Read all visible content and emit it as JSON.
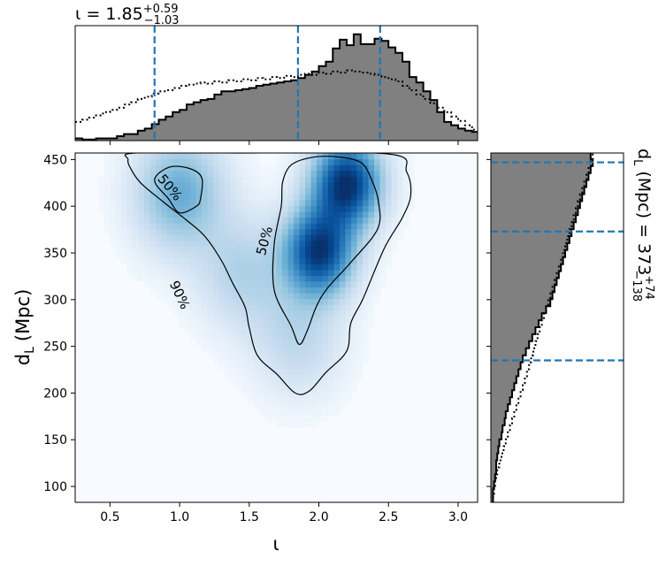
{
  "chart_data": {
    "type": "corner",
    "joint": {
      "type": "heatmap",
      "xlabel_base": "ι",
      "ylabel_base": "d",
      "ylabel_sub": "L",
      "ylabel_unit": "(Mpc)",
      "xlim": [
        0.25,
        3.14
      ],
      "ylim": [
        83,
        457
      ],
      "xticks": [
        0.5,
        1.0,
        1.5,
        2.0,
        2.5,
        3.0
      ],
      "xtick_labels": [
        "0.5",
        "1.0",
        "1.5",
        "2.0",
        "2.5",
        "3.0"
      ],
      "yticks": [
        100,
        150,
        200,
        250,
        300,
        350,
        400,
        450
      ],
      "ytick_labels": [
        "100",
        "150",
        "200",
        "250",
        "300",
        "350",
        "400",
        "450"
      ],
      "colormap": "Blues",
      "density_peaks": [
        {
          "x": 2.2,
          "y": 425,
          "weight": 1.0
        },
        {
          "x": 2.0,
          "y": 352,
          "weight": 0.95
        },
        {
          "x": 1.0,
          "y": 415,
          "weight": 0.45
        },
        {
          "x": 1.45,
          "y": 330,
          "weight": 0.25
        },
        {
          "x": 1.85,
          "y": 260,
          "weight": 0.22
        }
      ],
      "contours": [
        {
          "label": "50%",
          "points": [
            [
              1.12,
              400
            ],
            [
              1.0,
              393
            ],
            [
              0.92,
              408
            ],
            [
              0.82,
              428
            ],
            [
              0.93,
              442
            ],
            [
              1.08,
              440
            ],
            [
              1.16,
              430
            ],
            [
              1.15,
              408
            ]
          ]
        },
        {
          "label": "50%",
          "points": [
            [
              1.73,
              400
            ],
            [
              1.68,
              360
            ],
            [
              1.68,
              310
            ],
            [
              1.8,
              272
            ],
            [
              1.86,
              252
            ],
            [
              1.92,
              268
            ],
            [
              1.98,
              292
            ],
            [
              2.06,
              312
            ],
            [
              2.23,
              340
            ],
            [
              2.42,
              375
            ],
            [
              2.43,
              403
            ],
            [
              2.38,
              428
            ],
            [
              2.3,
              447
            ],
            [
              2.12,
              453
            ],
            [
              1.94,
              452
            ],
            [
              1.8,
              444
            ],
            [
              1.74,
              426
            ]
          ]
        },
        {
          "label": "90%",
          "points": [
            [
              0.65,
              440
            ],
            [
              0.72,
              425
            ],
            [
              0.88,
              405
            ],
            [
              1.05,
              385
            ],
            [
              1.18,
              368
            ],
            [
              1.3,
              342
            ],
            [
              1.38,
              318
            ],
            [
              1.47,
              292
            ],
            [
              1.5,
              270
            ],
            [
              1.56,
              240
            ],
            [
              1.7,
              220
            ],
            [
              1.83,
              200
            ],
            [
              1.93,
              202
            ],
            [
              2.05,
              222
            ],
            [
              2.2,
              245
            ],
            [
              2.23,
              275
            ],
            [
              2.32,
              302
            ],
            [
              2.47,
              355
            ],
            [
              2.6,
              388
            ],
            [
              2.66,
              412
            ],
            [
              2.63,
              437
            ],
            [
              2.5,
              456
            ],
            [
              1.4,
              457
            ],
            [
              0.68,
              457
            ],
            [
              0.63,
              450
            ]
          ]
        }
      ],
      "contour_labels": [
        {
          "text": "50%",
          "x": 0.93,
          "y": 420,
          "angle": 50
        },
        {
          "text": "50%",
          "x": 1.61,
          "y": 363,
          "angle": -75
        },
        {
          "text": "90%",
          "x": 1.0,
          "y": 305,
          "angle": 65
        }
      ]
    },
    "top_marginal": {
      "title_base": "ι = 1.85",
      "title_sup": "+0.59",
      "title_sub": "−1.03",
      "quantiles": [
        0.82,
        1.85,
        2.44
      ],
      "bin_edges_start": 0.25,
      "bin_width": 0.05,
      "posterior_heights": [
        0.02,
        0.01,
        0.01,
        0.02,
        0.02,
        0.02,
        0.04,
        0.06,
        0.06,
        0.09,
        0.11,
        0.15,
        0.19,
        0.22,
        0.26,
        0.28,
        0.33,
        0.35,
        0.37,
        0.38,
        0.42,
        0.45,
        0.45,
        0.46,
        0.47,
        0.48,
        0.5,
        0.51,
        0.52,
        0.53,
        0.54,
        0.55,
        0.57,
        0.6,
        0.63,
        0.68,
        0.72,
        0.84,
        0.92,
        0.87,
        0.97,
        0.88,
        0.88,
        0.93,
        0.91,
        0.85,
        0.8,
        0.72,
        0.58,
        0.53,
        0.45,
        0.37,
        0.26,
        0.17,
        0.14,
        0.11,
        0.09,
        0.08,
        0.04
      ],
      "prior_heights": [
        0.17,
        0.19,
        0.21,
        0.23,
        0.26,
        0.28,
        0.3,
        0.33,
        0.35,
        0.38,
        0.4,
        0.43,
        0.45,
        0.46,
        0.48,
        0.5,
        0.51,
        0.52,
        0.53,
        0.52,
        0.54,
        0.53,
        0.55,
        0.54,
        0.56,
        0.55,
        0.57,
        0.56,
        0.58,
        0.57,
        0.59,
        0.58,
        0.6,
        0.61,
        0.6,
        0.62,
        0.61,
        0.63,
        0.62,
        0.64,
        0.63,
        0.62,
        0.61,
        0.6,
        0.58,
        0.56,
        0.54,
        0.5,
        0.46,
        0.42,
        0.38,
        0.34,
        0.3,
        0.26,
        0.22,
        0.18,
        0.14,
        0.1,
        0.07
      ]
    },
    "right_marginal": {
      "label_base": "d",
      "label_sub": "L",
      "label_rest": "(Mpc) = 373",
      "label_sup": "+74",
      "label_subscript": "−138",
      "quantiles": [
        235,
        373,
        447
      ],
      "bin_edges_start": 83,
      "bin_width": 7.5,
      "posterior_widths": [
        0.02,
        0.02,
        0.03,
        0.04,
        0.05,
        0.05,
        0.06,
        0.07,
        0.08,
        0.1,
        0.11,
        0.13,
        0.14,
        0.16,
        0.18,
        0.2,
        0.22,
        0.24,
        0.26,
        0.28,
        0.3,
        0.33,
        0.36,
        0.39,
        0.42,
        0.45,
        0.48,
        0.52,
        0.56,
        0.58,
        0.6,
        0.62,
        0.64,
        0.66,
        0.68,
        0.7,
        0.72,
        0.74,
        0.76,
        0.78,
        0.8,
        0.82,
        0.84,
        0.86,
        0.88,
        0.9,
        0.92,
        0.94,
        0.96,
        0.94
      ],
      "prior_widths": [
        0.02,
        0.03,
        0.04,
        0.05,
        0.06,
        0.08,
        0.1,
        0.12,
        0.14,
        0.16,
        0.18,
        0.2,
        0.22,
        0.24,
        0.26,
        0.28,
        0.3,
        0.32,
        0.34,
        0.36,
        0.38,
        0.4,
        0.42,
        0.44,
        0.46,
        0.48,
        0.5,
        0.52,
        0.54,
        0.56,
        0.58,
        0.6,
        0.62,
        0.64,
        0.66,
        0.68,
        0.7,
        0.72,
        0.74,
        0.76,
        0.78,
        0.8,
        0.82,
        0.84,
        0.86,
        0.88,
        0.9,
        0.92,
        0.94,
        0.96
      ]
    },
    "colors": {
      "posterior_fill": "#808080",
      "quantile_line": "#1f77b4",
      "contour": "#000000"
    }
  }
}
